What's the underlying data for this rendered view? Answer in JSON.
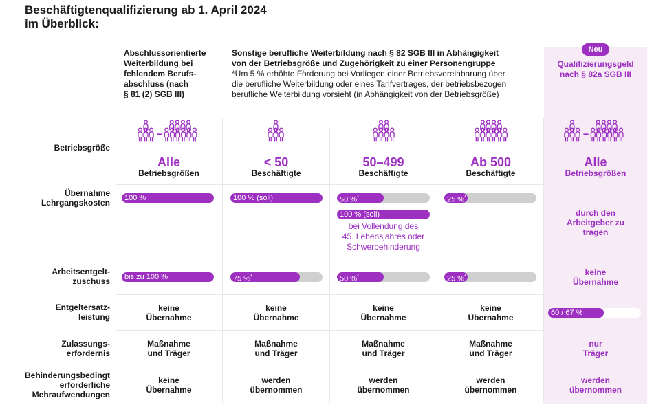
{
  "title": {
    "line1": "Beschäftigtenqualifizierung ab 1. April 2024",
    "line2": "im Überblick:"
  },
  "badge": "Neu",
  "colors": {
    "accent": "#9d2fc1",
    "bar_track": "#cfcfcf",
    "pink_bg": "#f7ecf5"
  },
  "columns": {
    "c1": {
      "header": [
        "Abschlussorientierte",
        "Weiterbildung bei",
        "fehlendem Berufs-",
        "abschluss (nach",
        "§ 81 (2) SGB III)"
      ]
    },
    "mid": {
      "header_bold": [
        "Sonstige berufliche Weiterbildung nach § 82 SGB III in Abhängigkeit",
        "von der Betriebsgröße und Zugehörigkeit zu einer Personengruppe"
      ],
      "header_note": [
        "*Um 5 % erhöhte Förderung bei Vorliegen einer Betriebsvereinbarung über",
        "die berufliche Weiterbildung oder eines Tarifvertrages, der betriebsbezogen",
        "berufliche Weiterbildung vorsieht (in Abhängigkeit von der Betriebsgröße)"
      ]
    },
    "c5": {
      "header": [
        "Qualifizierungsgeld",
        "nach § 82a SGB III"
      ]
    }
  },
  "rows": {
    "betriebsgroesse": {
      "label": "Betriebsgröße",
      "c1": {
        "big": "Alle",
        "sub": "Betriebsgrößen",
        "icon": "people-group-range-icon"
      },
      "c2": {
        "big": "< 50",
        "sub": "Beschäftigte",
        "icon": "people-small-group-icon"
      },
      "c3": {
        "big": "50–499",
        "sub": "Beschäftigte",
        "icon": "people-medium-group-icon"
      },
      "c4": {
        "big": "Ab 500",
        "sub": "Beschäftigte",
        "icon": "people-large-group-icon"
      },
      "c5": {
        "big": "Alle",
        "sub": "Betriebsgrößen",
        "icon": "people-group-range-icon"
      }
    },
    "lehrgangskosten": {
      "label": [
        "Übernahme",
        "Lehrgangskosten"
      ],
      "c1": {
        "text": "100 %",
        "percent": 100
      },
      "c2": {
        "text": "100 % (soll)",
        "percent": 100
      },
      "c3": {
        "text": "50 %",
        "star": "*",
        "percent": 50,
        "text2": "100 % (soll)",
        "percent2": 100,
        "note": [
          "bei Vollendung des",
          "45. Lebensjahres oder",
          "Schwerbehinderung"
        ]
      },
      "c4": {
        "text": "25 %",
        "star": "*",
        "percent": 25
      },
      "c5": {
        "text": [
          "durch den",
          "Arbeitgeber zu",
          "tragen"
        ]
      }
    },
    "arbeitsentgelt": {
      "label": [
        "Arbeitsentgelt-",
        "zuschuss"
      ],
      "c1": {
        "text": "bis zu 100 %",
        "percent": 100
      },
      "c2": {
        "text": "75 %",
        "star": "*",
        "percent": 75
      },
      "c3": {
        "text": "50 %",
        "star": "*",
        "percent": 50
      },
      "c4": {
        "text": "25 %",
        "star": "*",
        "percent": 25
      },
      "c5": {
        "text": [
          "keine",
          "Übernahme"
        ]
      }
    },
    "entgeltersatz": {
      "label": [
        "Entgeltersatz-",
        "leistung"
      ],
      "c1": [
        "keine",
        "Übernahme"
      ],
      "c2": [
        "keine",
        "Übernahme"
      ],
      "c3": [
        "keine",
        "Übernahme"
      ],
      "c4": [
        "keine",
        "Übernahme"
      ],
      "c5": {
        "text": "60 / 67 %",
        "percent": 60
      }
    },
    "zulassung": {
      "label": [
        "Zulassungs-",
        "erfordernis"
      ],
      "c1": [
        "Maßnahme",
        "und Träger"
      ],
      "c2": [
        "Maßnahme",
        "und Träger"
      ],
      "c3": [
        "Maßnahme",
        "und Träger"
      ],
      "c4": [
        "Maßnahme",
        "und Träger"
      ],
      "c5": [
        "nur",
        "Träger"
      ]
    },
    "behinderung": {
      "label": [
        "Behinderungsbedingt",
        "erforderliche",
        "Mehraufwendungen"
      ],
      "c1": [
        "keine",
        "Übernahme"
      ],
      "c2": [
        "werden",
        "übernommen"
      ],
      "c3": [
        "werden",
        "übernommen"
      ],
      "c4": [
        "werden",
        "übernommen"
      ],
      "c5": [
        "werden",
        "übernommen"
      ]
    }
  }
}
